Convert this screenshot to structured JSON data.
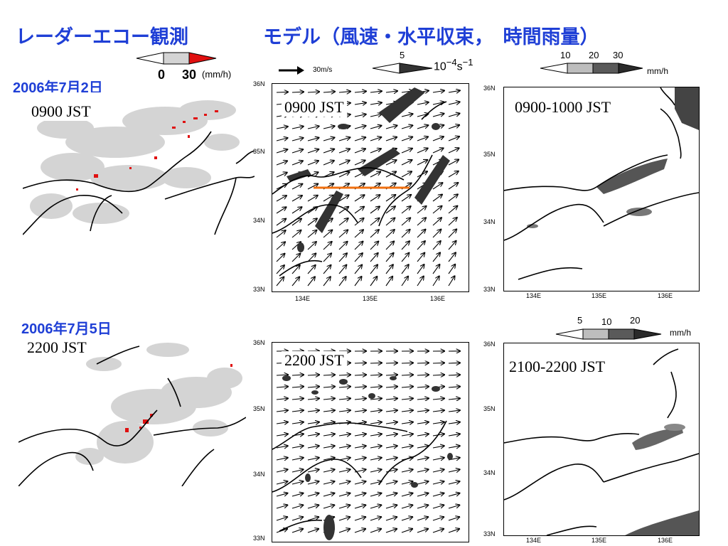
{
  "header": {
    "title_radar": "レーダーエコー観測",
    "title_model": "モデル（風速・水平収束，　時間雨量）"
  },
  "radar_legend": {
    "min": "0",
    "max": "30",
    "unit": "(mm/h)"
  },
  "wind_legend": {
    "ref": "30m/s",
    "value": "5",
    "unit_base": "10",
    "unit_exp": "−4",
    "unit_s": "s",
    "unit_exp2": "−1"
  },
  "rain_legend_top": {
    "v1": "10",
    "v2": "20",
    "v3": "30",
    "unit": "mm/h"
  },
  "rain_legend_bottom": {
    "v1": "5",
    "v2": "10",
    "v3": "20",
    "unit": "mm/h"
  },
  "row1": {
    "date": "2006年7月2日",
    "radar_time": "0900 JST",
    "model_time": "0900 JST",
    "rain_time": "0900-1000 JST"
  },
  "row2": {
    "date": "2006年7月5日",
    "radar_time": "2200 JST",
    "model_time": "2200 JST",
    "rain_time": "2100-2200 JST"
  },
  "axes": {
    "lat": [
      "36N",
      "35N",
      "34N",
      "33N"
    ],
    "lon": [
      "134E",
      "135E",
      "136E"
    ]
  },
  "colors": {
    "title_blue": "#1f3fd6",
    "radar_gray": "#d4d4d4",
    "radar_red": "#e01010",
    "rain_dark": "#404040",
    "rain_mid": "#808080",
    "section_line": "#f07010"
  }
}
